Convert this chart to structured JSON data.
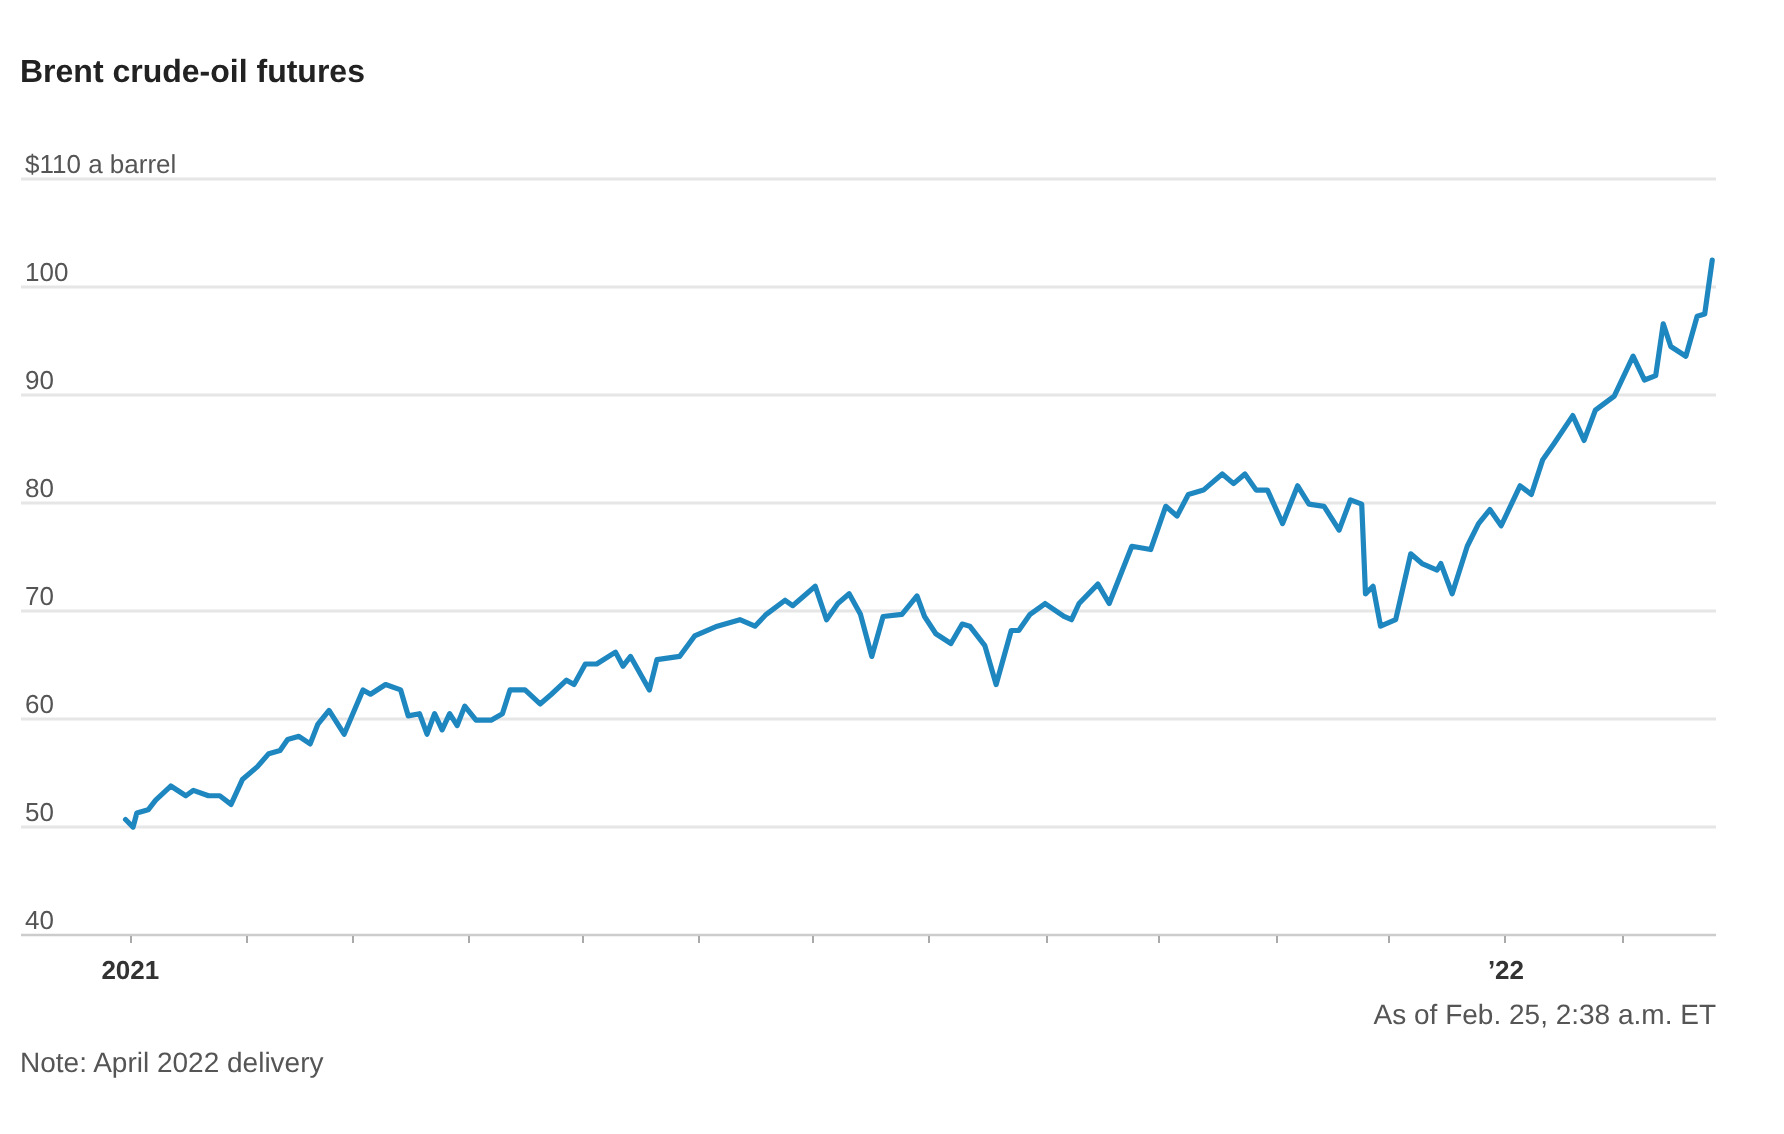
{
  "chart_data": {
    "type": "line",
    "title": "Brent crude-oil futures",
    "color": "#1f87c0",
    "line_style": "solid",
    "grid": "y",
    "xlim": [
      "2020-12-03",
      "2022-02-26"
    ],
    "ylim": [
      40,
      110
    ],
    "yticks": [
      40,
      50,
      60,
      70,
      80,
      90,
      100,
      {
        "value": 110,
        "label": "$110 a barrel"
      }
    ],
    "xticks": [
      {
        "value": "2021-01-01",
        "label": "2021"
      },
      {
        "value": "2021-02-01",
        "label": null
      },
      {
        "value": "2021-03-01",
        "label": null
      },
      {
        "value": "2021-04-01",
        "label": null
      },
      {
        "value": "2021-05-01",
        "label": null
      },
      {
        "value": "2021-06-01",
        "label": null
      },
      {
        "value": "2021-07-01",
        "label": null
      },
      {
        "value": "2021-08-01",
        "label": null
      },
      {
        "value": "2021-09-01",
        "label": null
      },
      {
        "value": "2021-10-01",
        "label": null
      },
      {
        "value": "2021-11-01",
        "label": null
      },
      {
        "value": "2021-12-01",
        "label": null
      },
      {
        "value": "2022-01-01",
        "label": "’22"
      },
      {
        "value": "2022-02-01",
        "label": null
      }
    ],
    "annotations": [
      "As of Feb. 25, 2:38 a.m. ET",
      "Note: April 2022 delivery"
    ],
    "x": [
      "2020-12-31",
      "2021-01-02",
      "2021-01-03",
      "2021-01-06",
      "2021-01-08",
      "2021-01-12",
      "2021-01-16",
      "2021-01-18",
      "2021-01-22",
      "2021-01-25",
      "2021-01-28",
      "2021-01-31",
      "2021-02-04",
      "2021-02-07",
      "2021-02-10",
      "2021-02-12",
      "2021-02-15",
      "2021-02-18",
      "2021-02-20",
      "2021-02-23",
      "2021-02-27",
      "2021-03-04",
      "2021-03-06",
      "2021-03-10",
      "2021-03-14",
      "2021-03-16",
      "2021-03-19",
      "2021-03-21",
      "2021-03-23",
      "2021-03-25",
      "2021-03-27",
      "2021-03-29",
      "2021-03-31",
      "2021-04-03",
      "2021-04-07",
      "2021-04-10",
      "2021-04-12",
      "2021-04-16",
      "2021-04-20",
      "2021-04-23",
      "2021-04-27",
      "2021-04-29",
      "2021-05-02",
      "2021-05-05",
      "2021-05-10",
      "2021-05-12",
      "2021-05-14",
      "2021-05-19",
      "2021-05-21",
      "2021-05-27",
      "2021-05-31",
      "2021-06-06",
      "2021-06-12",
      "2021-06-16",
      "2021-06-19",
      "2021-06-24",
      "2021-06-26",
      "2021-07-02",
      "2021-07-05",
      "2021-07-08",
      "2021-07-11",
      "2021-07-14",
      "2021-07-17",
      "2021-07-20",
      "2021-07-25",
      "2021-07-29",
      "2021-07-31",
      "2021-08-03",
      "2021-08-07",
      "2021-08-10",
      "2021-08-12",
      "2021-08-16",
      "2021-08-19",
      "2021-08-23",
      "2021-08-25",
      "2021-08-28",
      "2021-09-01",
      "2021-09-06",
      "2021-09-08",
      "2021-09-10",
      "2021-09-15",
      "2021-09-18",
      "2021-09-24",
      "2021-09-29",
      "2021-10-03",
      "2021-10-06",
      "2021-10-09",
      "2021-10-13",
      "2021-10-15",
      "2021-10-18",
      "2021-10-21",
      "2021-10-24",
      "2021-10-27",
      "2021-10-30",
      "2021-11-03",
      "2021-11-07",
      "2021-11-10",
      "2021-11-14",
      "2021-11-18",
      "2021-11-21",
      "2021-11-24",
      "2021-11-25",
      "2021-11-27",
      "2021-11-29",
      "2021-12-03",
      "2021-12-07",
      "2021-12-10",
      "2021-12-14",
      "2021-12-15",
      "2021-12-18",
      "2021-12-22",
      "2021-12-25",
      "2021-12-28",
      "2021-12-31",
      "2022-01-05",
      "2022-01-08",
      "2022-01-11",
      "2022-01-14",
      "2022-01-19",
      "2022-01-22",
      "2022-01-25",
      "2022-01-30",
      "2022-02-04",
      "2022-02-07",
      "2022-02-10",
      "2022-02-12",
      "2022-02-14",
      "2022-02-18",
      "2022-02-21",
      "2022-02-23",
      "2022-02-25"
    ],
    "values": [
      50.6,
      49.9,
      51.2,
      51.5,
      52.4,
      53.7,
      52.8,
      53.3,
      52.8,
      52.8,
      52.0,
      54.3,
      55.5,
      56.7,
      57.0,
      58.0,
      58.3,
      57.6,
      59.4,
      60.7,
      58.5,
      62.6,
      62.2,
      63.1,
      62.6,
      60.2,
      60.4,
      58.5,
      60.4,
      58.9,
      60.4,
      59.3,
      61.1,
      59.8,
      59.8,
      60.4,
      62.6,
      62.6,
      61.3,
      62.2,
      63.5,
      63.1,
      65.0,
      65.0,
      66.1,
      64.8,
      65.7,
      62.6,
      65.4,
      65.7,
      67.6,
      68.5,
      69.1,
      68.5,
      69.6,
      70.9,
      70.4,
      72.2,
      69.1,
      70.6,
      71.5,
      69.6,
      65.7,
      69.4,
      69.6,
      71.3,
      69.4,
      67.8,
      66.9,
      68.7,
      68.5,
      66.7,
      63.1,
      68.1,
      68.1,
      69.6,
      70.6,
      69.4,
      69.1,
      70.6,
      72.4,
      70.6,
      75.9,
      75.6,
      79.6,
      78.7,
      80.7,
      81.1,
      81.7,
      82.6,
      81.7,
      82.6,
      81.1,
      81.1,
      78.0,
      81.5,
      79.8,
      79.6,
      77.4,
      80.2,
      79.8,
      71.5,
      72.2,
      68.5,
      69.1,
      75.2,
      74.3,
      73.7,
      74.3,
      71.5,
      75.9,
      78.0,
      79.3,
      77.8,
      81.5,
      80.7,
      83.9,
      85.4,
      88.0,
      85.7,
      88.5,
      89.8,
      93.5,
      91.3,
      91.7,
      96.5,
      94.4,
      93.5,
      97.2,
      97.4,
      102.4
    ]
  }
}
